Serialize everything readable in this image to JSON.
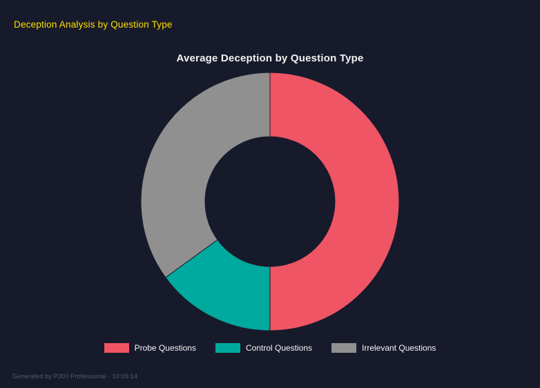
{
  "header": {
    "title": "Deception Analysis by Question Type",
    "title_color": "#ffe000"
  },
  "chart_data": {
    "type": "pie",
    "subtype": "doughnut",
    "title": "Average Deception by Question Type",
    "labels": [
      "Probe Questions",
      "Control Questions",
      "Irrelevant Questions"
    ],
    "values": [
      50,
      15,
      35
    ],
    "values_are_percent_of_whole": true,
    "colors": [
      "#ef5565",
      "#00a99e",
      "#909090"
    ],
    "cutout_percent": 50,
    "start_angle_deg": -90,
    "direction": "clockwise",
    "legend_position": "bottom",
    "background": "#171a2b"
  },
  "footer": {
    "text": "Generated by P300 Professional - 10:05:14"
  }
}
